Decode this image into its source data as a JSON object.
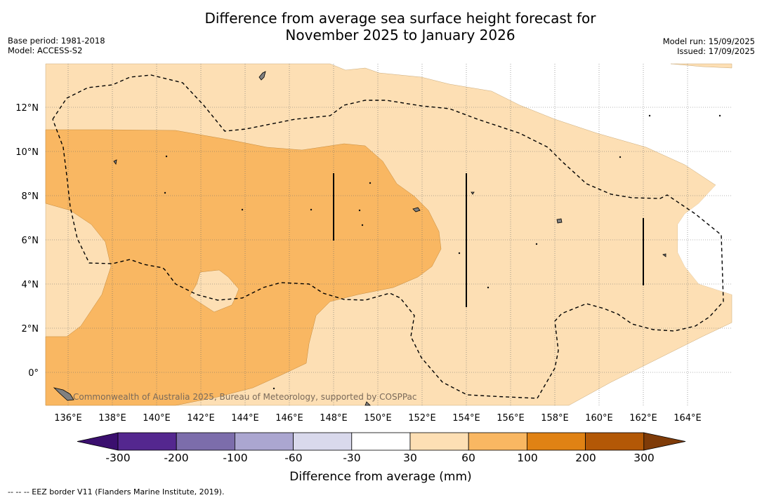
{
  "header": {
    "title_line1": "Difference from average sea surface height forecast for",
    "title_line2": "November 2025 to January 2026",
    "base_period": "Base period: 1981-2018",
    "model": "Model: ACCESS-S2",
    "model_run": "Model run: 15/09/2025",
    "issued": "Issued: 17/09/2025"
  },
  "map": {
    "x_ticks": [
      "136°E",
      "138°E",
      "140°E",
      "142°E",
      "144°E",
      "146°E",
      "148°E",
      "150°E",
      "152°E",
      "154°E",
      "156°E",
      "158°E",
      "160°E",
      "162°E",
      "164°E"
    ],
    "y_ticks": [
      "12°N",
      "10°N",
      "8°N",
      "6°N",
      "4°N",
      "2°N",
      "0°"
    ],
    "credit": "Commonwealth of Australia 2025, Bureau of Meteorology, supported by COSPPac",
    "colors": {
      "30_60": "#fddfb4",
      "60_100": "#f9b762",
      "ocean_white": "#ffffff",
      "land": "#808080"
    }
  },
  "colorbar": {
    "ticks": [
      "-300",
      "-200",
      "-100",
      "-60",
      "-30",
      "30",
      "60",
      "100",
      "200",
      "300"
    ],
    "colors": [
      "#3b0f6f",
      "#54278f",
      "#7c6dab",
      "#aba6d0",
      "#d9d9ec",
      "#ffffff",
      "#fddfb4",
      "#f9b762",
      "#e08214",
      "#b35806",
      "#7f3b08"
    ],
    "label": "Difference from average (mm)"
  },
  "footnote": "-- -- -- EEZ border V11 (Flanders Marine Institute, 2019)."
}
